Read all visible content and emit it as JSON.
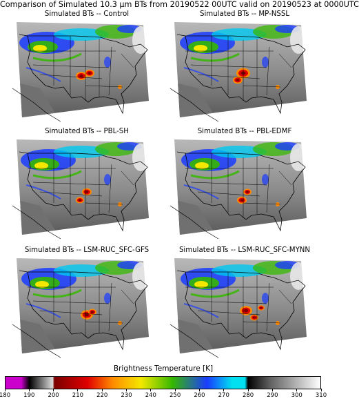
{
  "title": "Comparison of Simulated 10.3 μm BTs from 20190522 00UTC valid on 20190523 at 0000UTC",
  "panels": [
    {
      "title": "Simulated BTs -- Control"
    },
    {
      "title": "Simulated BTs -- MP-NSSL"
    },
    {
      "title": "Simulated BTs -- PBL-SH"
    },
    {
      "title": "Simulated BTs -- PBL-EDMF"
    },
    {
      "title": "Simulated BTs -- LSM-RUC_SFC-GFS"
    },
    {
      "title": "Simulated BTs -- LSM-RUC_SFC-MYNN"
    }
  ],
  "colorbar": {
    "label": "Brightness Temperature [K]",
    "ticks": [
      "180",
      "190",
      "200",
      "210",
      "220",
      "230",
      "240",
      "250",
      "260",
      "270",
      "280",
      "290",
      "300",
      "310"
    ],
    "range": [
      180,
      310
    ],
    "colors": {
      "magenta": "#cc00cc",
      "black": "#000000",
      "gray_light": "#dcdcdc",
      "red_dark": "#7a0000",
      "red": "#e00000",
      "orange": "#ff8a00",
      "yellow": "#f4e800",
      "green": "#35b800",
      "blue": "#1a3cff",
      "cyan": "#00e0f0",
      "gray_warm": "#606060"
    }
  }
}
